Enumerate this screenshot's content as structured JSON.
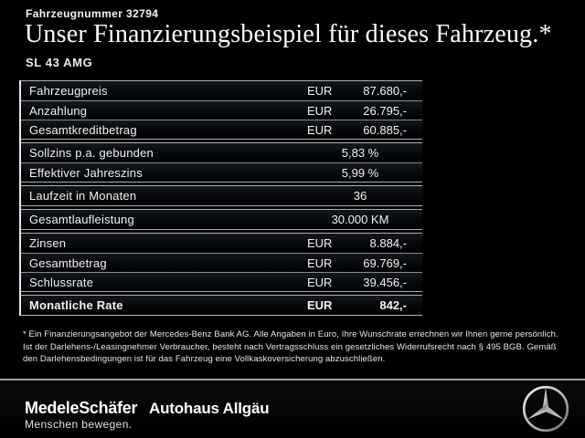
{
  "header": {
    "vehicle_number": "Fahrzeugnummer 32794",
    "title": "Unser Finanzierungsbeispiel für dieses Fahrzeug.*",
    "model": "SL 43 AMG"
  },
  "table": {
    "groups": [
      {
        "rows": [
          {
            "label": "Fahrzeugpreis",
            "currency": "EUR",
            "value": "87.680,-"
          },
          {
            "label": "Anzahlung",
            "currency": "EUR",
            "value": "26.795,-"
          },
          {
            "label": "Gesamtkreditbetrag",
            "currency": "EUR",
            "value": "60.885,-"
          }
        ]
      },
      {
        "rows": [
          {
            "label": "Sollzins p.a. gebunden",
            "value": "5,83 %"
          },
          {
            "label": "Effektiver Jahreszins",
            "value": "5,99 %"
          }
        ]
      },
      {
        "rows": [
          {
            "label": "Laufzeit in Monaten",
            "value": "36"
          }
        ]
      },
      {
        "rows": [
          {
            "label": "Gesamtlaufleistung",
            "value": "30.000 KM"
          }
        ]
      },
      {
        "rows": [
          {
            "label": "Zinsen",
            "currency": "EUR",
            "value": "8.884,-"
          },
          {
            "label": "Gesamtbetrag",
            "currency": "EUR",
            "value": "69.769,-"
          },
          {
            "label": "Schlussrate",
            "currency": "EUR",
            "value": "39.456,-"
          }
        ]
      },
      {
        "rows": [
          {
            "label": "Monatliche Rate",
            "currency": "EUR",
            "value": "842,-",
            "bold": true
          }
        ]
      }
    ]
  },
  "footnote": "* Ein Finanzierungsangebot der Mercedes-Benz Bank AG. Alle Angaben in Euro, Ihre Wunschrate errechnen wir Ihnen gerne persönlich. Ist der Darlehens-/Leasingnehmer Verbraucher, besteht nach Vertragsschluss ein gesetzliches Widerrufsrecht nach § 495 BGB. Gemäß den Darlehensbedingungen ist für das Fahrzeug eine Vollkaskoversicherung abzuschließen.",
  "footer": {
    "dealer_logo": "MedeleSchäfer",
    "dealer_logo_secondary": "Autohaus Allgäu",
    "tagline": "Menschen bewegen.",
    "brand_icon": "mercedes-star-icon"
  },
  "colors": {
    "background": "#000000",
    "text": "#f2f2f2",
    "table_line": "#a9b0b6",
    "table_left_border": "#e9e9e9",
    "footer_separator": "#9a9a9a"
  }
}
